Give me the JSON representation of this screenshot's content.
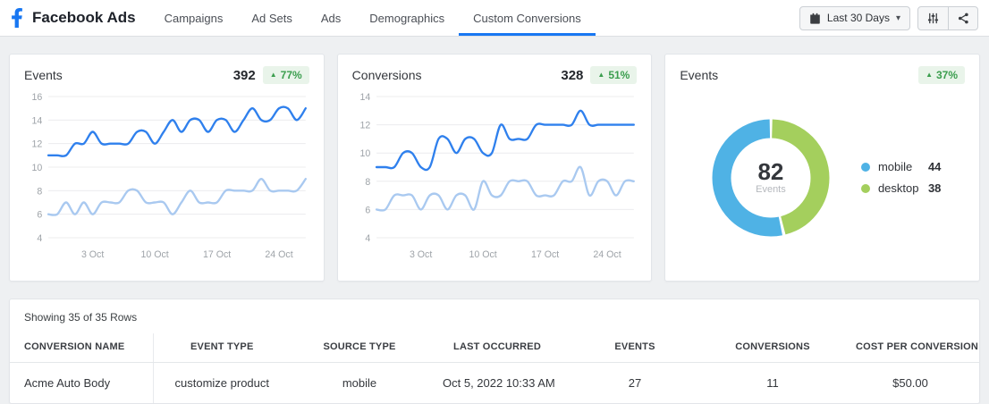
{
  "header": {
    "title": "Facebook Ads",
    "nav": [
      {
        "label": "Campaigns",
        "active": false
      },
      {
        "label": "Ad Sets",
        "active": false
      },
      {
        "label": "Ads",
        "active": false
      },
      {
        "label": "Demographics",
        "active": false
      },
      {
        "label": "Custom Conversions",
        "active": true
      }
    ],
    "date_button": {
      "label": "Last 30 Days"
    }
  },
  "icons": {
    "trend_up": "▲",
    "caret_down": "▾"
  },
  "colors": {
    "brand_blue": "#1877f2",
    "line_primary": "#2f80ed",
    "line_secondary": "#a9c9f0",
    "donut_mobile": "#4fb2e5",
    "donut_desktop": "#a4cf5d",
    "badge_bg": "#e9f4ea",
    "badge_text": "#3b9e4e",
    "grid": "#ececee",
    "axis_text": "#9ea3a8"
  },
  "chart_data": [
    {
      "type": "line",
      "title": "Events",
      "total": "392",
      "change": "77%",
      "trend": "up",
      "ylim": [
        4,
        16
      ],
      "yticks": [
        4,
        6,
        8,
        10,
        12,
        14,
        16
      ],
      "x_tick_labels": [
        "3 Oct",
        "10 Oct",
        "17 Oct",
        "24 Oct"
      ],
      "x_tick_indices": [
        5,
        12,
        19,
        26
      ],
      "grid": true,
      "legend_position": "none",
      "series": [
        {
          "name": "current",
          "color": "#2f80ed",
          "values": [
            11,
            11,
            11,
            12,
            12,
            13,
            12,
            12,
            12,
            12,
            13,
            13,
            12,
            13,
            14,
            13,
            14,
            14,
            13,
            14,
            14,
            13,
            14,
            15,
            14,
            14,
            15,
            15,
            14,
            15
          ]
        },
        {
          "name": "previous",
          "color": "#a9c9f0",
          "values": [
            6,
            6,
            7,
            6,
            7,
            6,
            7,
            7,
            7,
            8,
            8,
            7,
            7,
            7,
            6,
            7,
            8,
            7,
            7,
            7,
            8,
            8,
            8,
            8,
            9,
            8,
            8,
            8,
            8,
            9
          ]
        }
      ]
    },
    {
      "type": "line",
      "title": "Conversions",
      "total": "328",
      "change": "51%",
      "trend": "up",
      "ylim": [
        4,
        14
      ],
      "yticks": [
        4,
        6,
        8,
        10,
        12,
        14
      ],
      "x_tick_labels": [
        "3 Oct",
        "10 Oct",
        "17 Oct",
        "24 Oct"
      ],
      "x_tick_indices": [
        5,
        12,
        19,
        26
      ],
      "grid": true,
      "legend_position": "none",
      "series": [
        {
          "name": "current",
          "color": "#2f80ed",
          "values": [
            9,
            9,
            9,
            10,
            10,
            9,
            9,
            11,
            11,
            10,
            11,
            11,
            10,
            10,
            12,
            11,
            11,
            11,
            12,
            12,
            12,
            12,
            12,
            13,
            12,
            12,
            12,
            12,
            12,
            12
          ]
        },
        {
          "name": "previous",
          "color": "#a9c9f0",
          "values": [
            6,
            6,
            7,
            7,
            7,
            6,
            7,
            7,
            6,
            7,
            7,
            6,
            8,
            7,
            7,
            8,
            8,
            8,
            7,
            7,
            7,
            8,
            8,
            9,
            7,
            8,
            8,
            7,
            8,
            8
          ]
        }
      ]
    },
    {
      "type": "donut",
      "title": "Events",
      "change": "37%",
      "trend": "up",
      "center_value": "82",
      "center_label": "Events",
      "legend_position": "right",
      "slices": [
        {
          "label": "mobile",
          "value": 44,
          "display": "44",
          "color": "#4fb2e5"
        },
        {
          "label": "desktop",
          "value": 38,
          "display": "38",
          "color": "#a4cf5d"
        }
      ]
    }
  ],
  "table": {
    "caption": "Showing 35 of 35 Rows",
    "columns": [
      "CONVERSION NAME",
      "EVENT TYPE",
      "SOURCE TYPE",
      "LAST OCCURRED",
      "EVENTS",
      "CONVERSIONS",
      "COST PER CONVERSION"
    ],
    "rows": [
      [
        "Acme Auto Body",
        "customize product",
        "mobile",
        "Oct 5, 2022 10:33 AM",
        "27",
        "11",
        "$50.00"
      ]
    ]
  }
}
